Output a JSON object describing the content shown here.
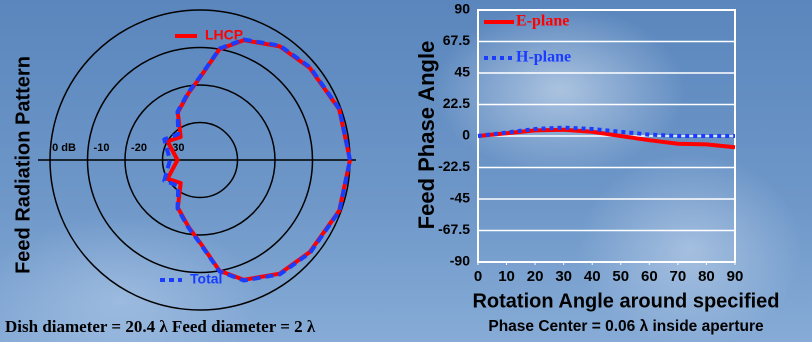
{
  "charts": [
    {
      "type": "polar",
      "ylabel": "Feed Radiation Pattern",
      "caption": "Dish diameter = 20.4 λ Feed diameter = 2 λ",
      "rlim": [
        -40,
        0
      ],
      "rticks": [
        {
          "value": 0,
          "label": "0 dB"
        },
        -10,
        -20,
        -30
      ],
      "x": [
        0,
        20,
        40,
        55,
        70,
        80,
        90,
        100,
        115,
        130,
        150,
        180,
        210,
        230,
        245,
        260,
        270,
        280,
        290,
        305,
        320,
        340,
        360
      ],
      "series": [
        {
          "name": "LHCP",
          "color": "#ff0000",
          "values": [
            0,
            -0.5,
            -1.8,
            -3,
            -6,
            -10,
            -18,
            -22,
            -26,
            -32,
            -30,
            -34,
            -30,
            -32,
            -26,
            -22,
            -18,
            -10,
            -6,
            -3,
            -1.8,
            -0.5,
            0
          ]
        },
        {
          "name": "Total",
          "color": "#1a3cff",
          "values": [
            0,
            -0.4,
            -1.6,
            -2.8,
            -5.8,
            -9.8,
            -17.8,
            -21.8,
            -25.8,
            -31,
            -29,
            -32,
            -29,
            -31,
            -25.8,
            -21.8,
            -17.8,
            -9.8,
            -5.8,
            -2.8,
            -1.6,
            -0.4,
            0
          ]
        }
      ]
    },
    {
      "type": "line",
      "ylabel": "Feed Phase Angle",
      "xlabel": "Rotation Angle around specified",
      "caption": "Phase Center = 0.06 λ inside aperture",
      "x": [
        0,
        10,
        20,
        30,
        40,
        50,
        60,
        70,
        80,
        90
      ],
      "xlim": [
        0,
        90
      ],
      "xticks": [
        0,
        10,
        20,
        30,
        40,
        50,
        60,
        70,
        80,
        90
      ],
      "ylim": [
        -90,
        90
      ],
      "yticks": [
        90,
        67.5,
        45,
        22.5,
        0,
        -22.5,
        -45,
        -67.5,
        -90
      ],
      "grid": true,
      "series": [
        {
          "name": "E-plane",
          "color": "#ff0000",
          "values": [
            0,
            2,
            4,
            4.5,
            3,
            0,
            -3,
            -5.5,
            -6,
            -8
          ]
        },
        {
          "name": "H-plane",
          "color": "#1a3cff",
          "values": [
            0,
            2.5,
            5,
            6,
            5,
            3,
            1,
            0,
            0,
            0
          ]
        }
      ]
    }
  ]
}
